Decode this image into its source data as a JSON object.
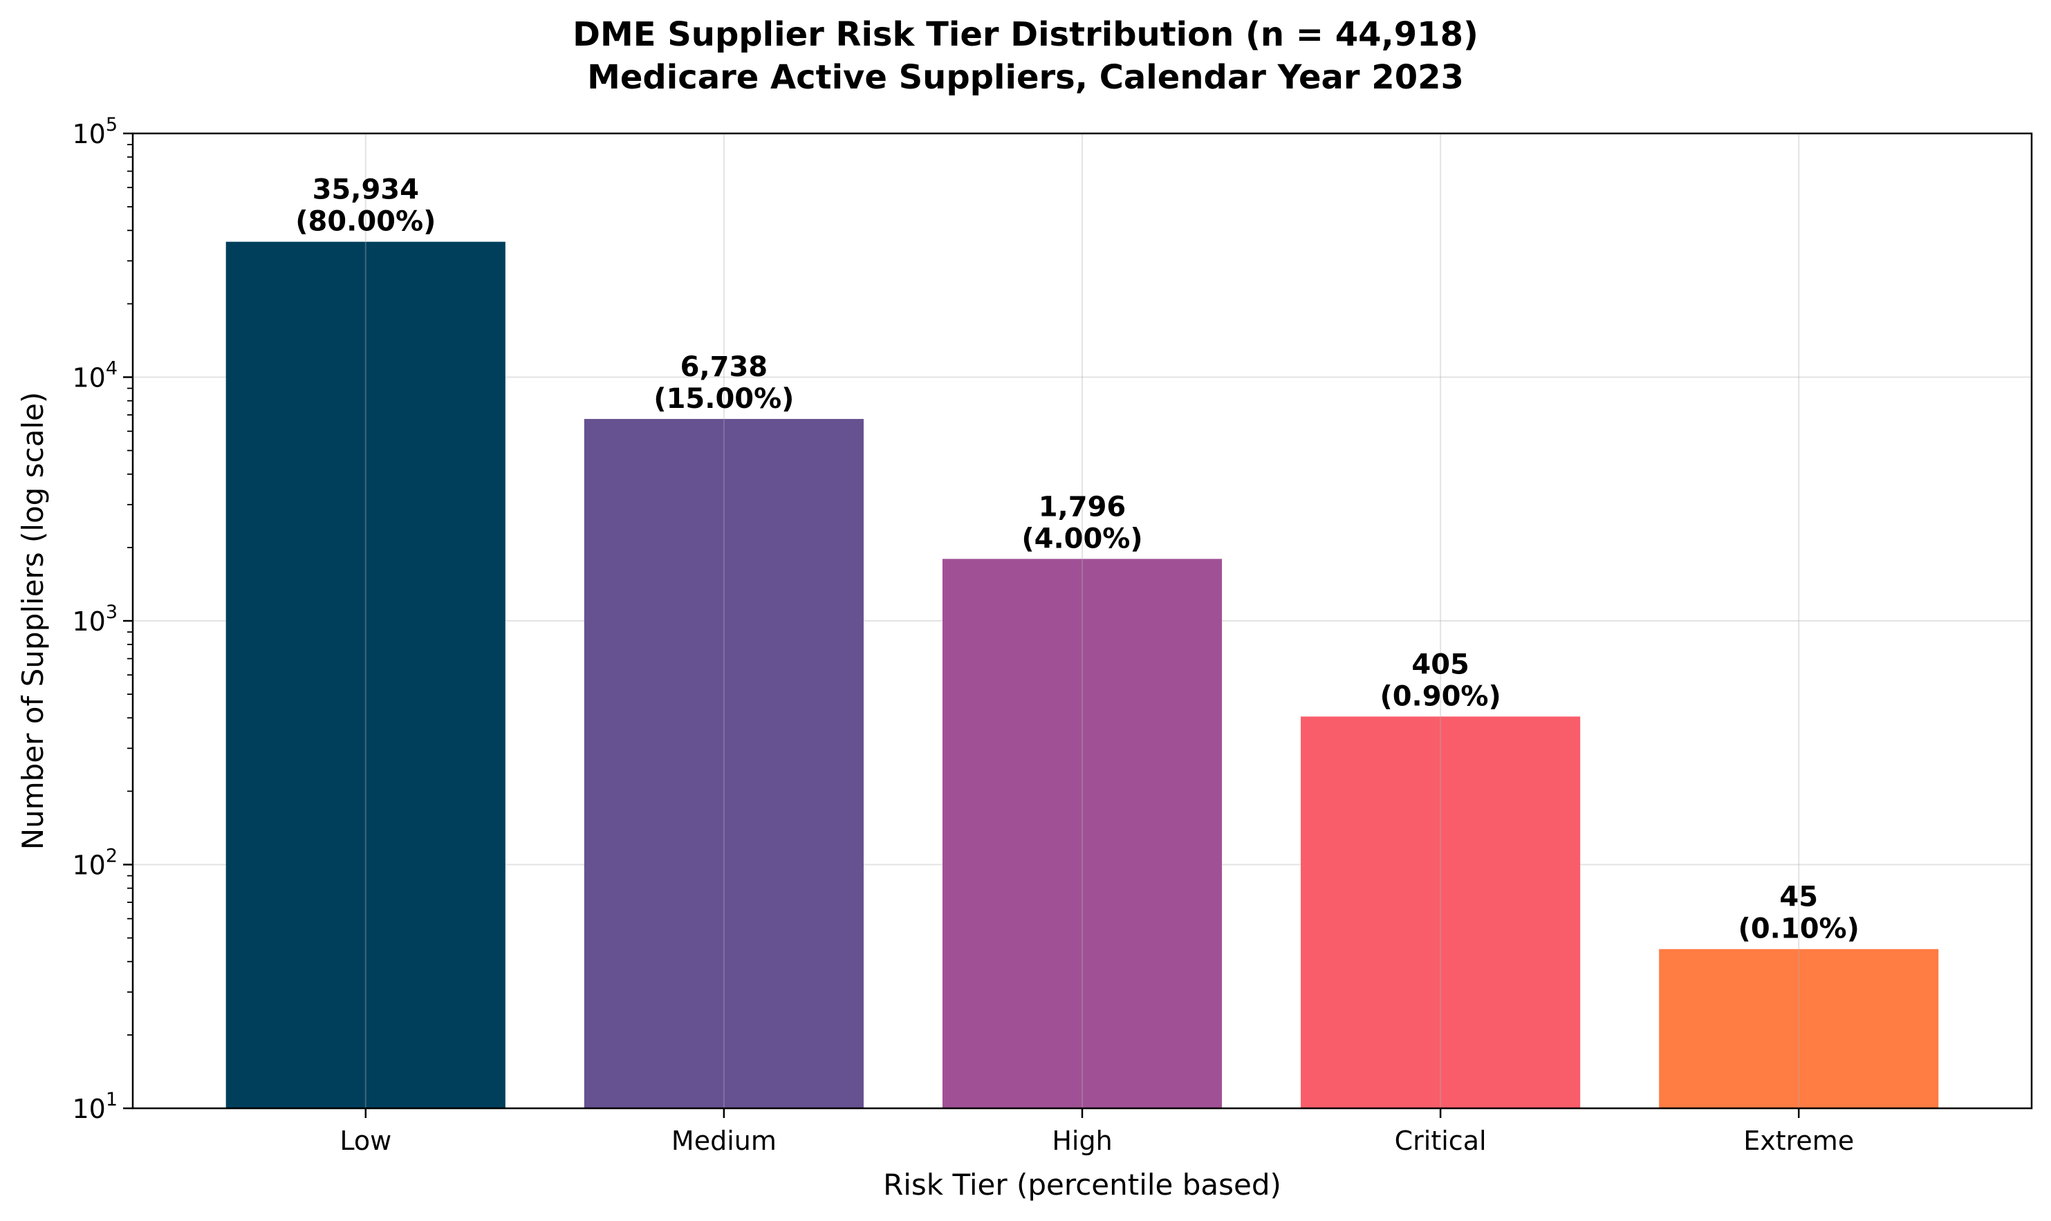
{
  "chart_data": {
    "type": "bar",
    "title_lines": [
      "DME Supplier Risk Tier Distribution (n = 44,918)",
      "Medicare Active Suppliers, Calendar Year 2023"
    ],
    "xlabel": "Risk Tier (percentile based)",
    "ylabel": "Number of Suppliers (log scale)",
    "y_scale": "log",
    "ylim": [
      10,
      100000
    ],
    "y_major_ticks": [
      {
        "base": "10",
        "exp": "1",
        "value": 10
      },
      {
        "base": "10",
        "exp": "2",
        "value": 100
      },
      {
        "base": "10",
        "exp": "3",
        "value": 1000
      },
      {
        "base": "10",
        "exp": "4",
        "value": 10000
      },
      {
        "base": "10",
        "exp": "5",
        "value": 100000
      }
    ],
    "grid": true,
    "categories": [
      "Low",
      "Medium",
      "High",
      "Critical",
      "Extreme"
    ],
    "values": [
      35934,
      6738,
      1796,
      405,
      45
    ],
    "value_labels": [
      "35,934",
      "6,738",
      "1,796",
      "405",
      "45"
    ],
    "percent_labels": [
      "(80.00%)",
      "(15.00%)",
      "(4.00%)",
      "(0.90%)",
      "(0.10%)"
    ],
    "colors": [
      "#003f5c",
      "#665191",
      "#a05195",
      "#f95d6a",
      "#ff7c43"
    ]
  }
}
